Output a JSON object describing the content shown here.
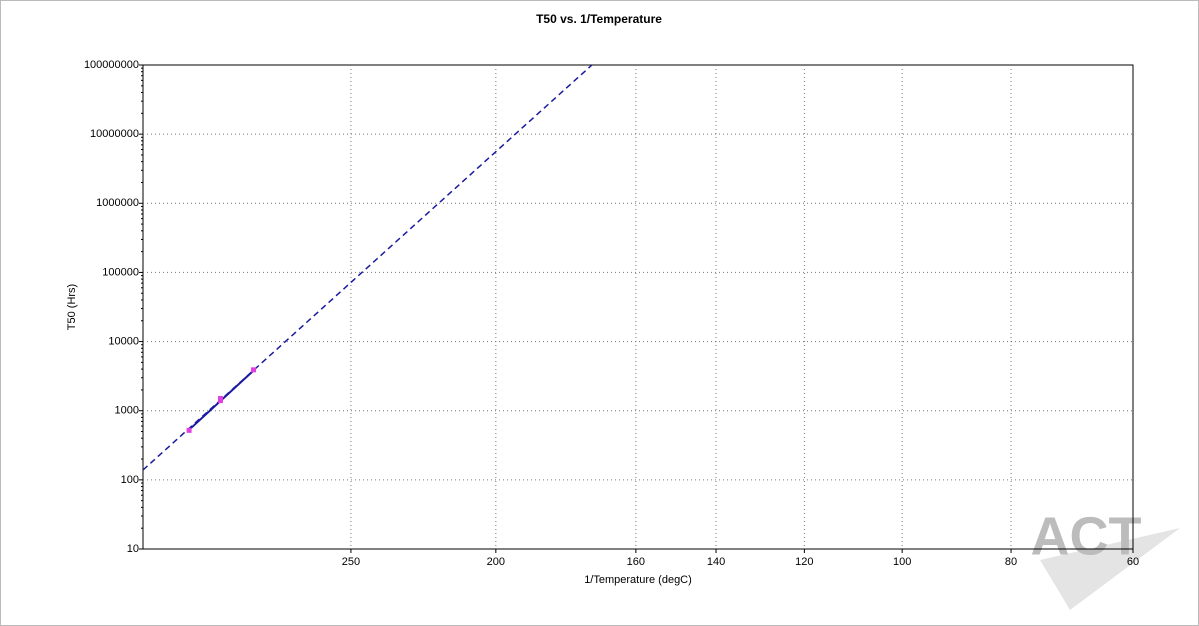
{
  "chart_data": {
    "type": "scatter",
    "title": "T50 vs. 1/Temperature",
    "xlabel": "1/Temperature (degC)",
    "ylabel": "T50 (Hrs)",
    "watermark": "ACT",
    "xscale": "reciprocal-kelvin",
    "yscale": "log",
    "grid": true,
    "xlim": [
      343.5,
      60
    ],
    "xticks": [
      250,
      200,
      160,
      140,
      120,
      100,
      80,
      60
    ],
    "ylim": [
      10,
      100000000
    ],
    "yticks": [
      10,
      100,
      1000,
      10000,
      100000,
      1000000,
      10000000,
      100000000
    ],
    "series": [
      {
        "color": "#e040e0",
        "style": "points",
        "x": [
          320,
          305,
          305,
          290
        ],
        "values": [
          520,
          1500,
          1400,
          3900
        ]
      },
      {
        "color": "#1a1aa0",
        "style": "dashed",
        "x": [
          343.5,
          171.8
        ],
        "values": [
          139,
          100000000
        ]
      },
      {
        "color": "#1a1aa0",
        "style": "solid",
        "x": [
          320,
          290
        ],
        "values": [
          530,
          3800
        ]
      }
    ]
  }
}
